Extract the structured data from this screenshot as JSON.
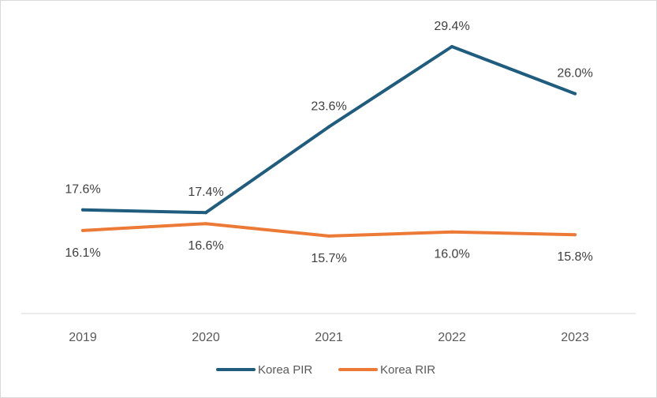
{
  "chart_data": {
    "type": "line",
    "title": "",
    "xlabel": "",
    "ylabel": "",
    "categories": [
      "2019",
      "2020",
      "2021",
      "2022",
      "2023"
    ],
    "series": [
      {
        "name": "Korea PIR",
        "color": "#1f5c7e",
        "values": [
          17.6,
          17.4,
          23.6,
          29.4,
          26.0
        ],
        "labels": [
          "17.6%",
          "17.4%",
          "23.6%",
          "29.4%",
          "26.0%"
        ]
      },
      {
        "name": "Korea RIR",
        "color": "#ec7a36",
        "values": [
          16.1,
          16.6,
          15.7,
          16.0,
          15.8
        ],
        "labels": [
          "16.1%",
          "16.6%",
          "15.7%",
          "16.0%",
          "15.8%"
        ]
      }
    ],
    "ylim": [
      10.1,
      31.0
    ],
    "grid": false,
    "legend": "bottom-center"
  }
}
